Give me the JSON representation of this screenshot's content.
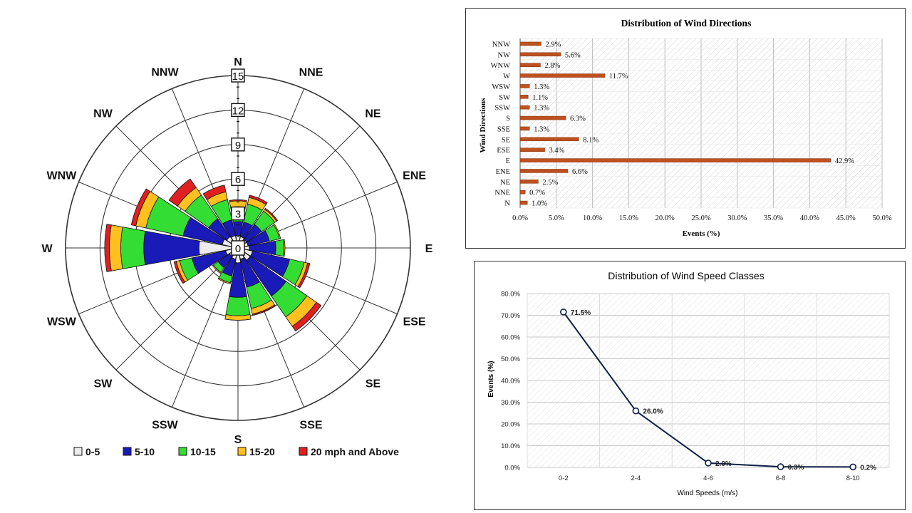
{
  "wind_rose": {
    "directions": [
      "N",
      "NNE",
      "NE",
      "ENE",
      "E",
      "ESE",
      "SE",
      "SSE",
      "S",
      "SSW",
      "SW",
      "WSW",
      "W",
      "WNW",
      "NW",
      "NNW"
    ],
    "rings": [
      "15",
      "12",
      "9",
      "6",
      "3",
      "0"
    ],
    "legend": [
      "0-5",
      "5-10",
      "10-15",
      "15-20",
      "20 mph and Above"
    ],
    "colors": [
      "#ececec",
      "#1a1ab8",
      "#33dd33",
      "#ffc020",
      "#e02020"
    ]
  },
  "chart_data": [
    {
      "type": "wind-rose",
      "directions": [
        "N",
        "NNE",
        "NE",
        "ENE",
        "E",
        "ESE",
        "SE",
        "SSE",
        "S",
        "SSW",
        "SW",
        "WSW",
        "W",
        "WNW",
        "NW",
        "NNW"
      ],
      "rlim": [
        0,
        15
      ],
      "ticks": [
        0,
        3,
        6,
        9,
        12,
        15
      ],
      "series": [
        {
          "name": "0-5",
          "values": [
            0.6,
            0.5,
            0.4,
            0.4,
            0.5,
            0.8,
            0.8,
            0.5,
            0.8,
            0.5,
            0.4,
            0.6,
            2.9,
            0.9,
            0.7,
            0.6
          ]
        },
        {
          "name": "5-10",
          "values": [
            1.2,
            1.3,
            1.6,
            1.9,
            2.3,
            3.3,
            3.8,
            2.5,
            3.0,
            1.5,
            1.2,
            3.0,
            4.8,
            3.5,
            1.9,
            1.4
          ]
        },
        {
          "name": "10-15",
          "values": [
            1.3,
            1.6,
            1.4,
            0.9,
            0.7,
            1.3,
            2.2,
            1.9,
            1.6,
            0.6,
            0.5,
            1.1,
            2.0,
            3.3,
            2.5,
            1.8
          ]
        },
        {
          "name": "15-20",
          "values": [
            0.5,
            0.6,
            0.2,
            0.1,
            0.1,
            0.3,
            1.0,
            0.5,
            0.4,
            0.1,
            0.1,
            0.3,
            1.0,
            0.9,
            0.8,
            0.7
          ]
        },
        {
          "name": "20 mph and Above",
          "values": [
            0.1,
            0.2,
            0.1,
            0.0,
            0.0,
            0.2,
            0.5,
            0.1,
            0.0,
            0.0,
            0.0,
            0.2,
            0.4,
            0.4,
            0.9,
            0.6
          ]
        }
      ]
    },
    {
      "type": "bar",
      "orientation": "horizontal",
      "title": "Distribution of Wind Directions",
      "xlabel": "Events (%)",
      "ylabel": "Wind Directions",
      "categories": [
        "NNW",
        "NW",
        "WNW",
        "W",
        "WSW",
        "SW",
        "SSW",
        "S",
        "SSE",
        "SE",
        "ESE",
        "E",
        "ENE",
        "NE",
        "NNE",
        "N"
      ],
      "values": [
        2.9,
        5.6,
        2.8,
        11.7,
        1.3,
        1.1,
        1.3,
        6.3,
        1.3,
        8.1,
        3.4,
        42.9,
        6.6,
        2.5,
        0.7,
        1.0
      ],
      "labels": [
        "2.9%",
        "5.6%",
        "2.8%",
        "11.7%",
        "1.3%",
        "1.1%",
        "1.3%",
        "6.3%",
        "1.3%",
        "8.1%",
        "3.4%",
        "42.9%",
        "6.6%",
        "2.5%",
        "0.7%",
        "1.0%"
      ],
      "xlim": [
        0,
        50
      ],
      "ticks": [
        "0.0%",
        "5.0%",
        "10.0%",
        "15.0%",
        "20.0%",
        "25.0%",
        "30.0%",
        "35.0%",
        "40.0%",
        "45.0%",
        "50.0%"
      ],
      "color": "#c0501e"
    },
    {
      "type": "line",
      "title": "Distribution of Wind Speed Classes",
      "xlabel": "Wind Speeds (m/s)",
      "ylabel": "Events (%)",
      "categories": [
        "0-2",
        "2-4",
        "4-6",
        "6-8",
        "8-10"
      ],
      "values": [
        71.5,
        26.0,
        2.0,
        0.3,
        0.2
      ],
      "labels": [
        "71.5%",
        "26.0%",
        "2.0%",
        "0.3%",
        "0.2%"
      ],
      "ylim": [
        0,
        80
      ],
      "ticks": [
        "0.0%",
        "10.0%",
        "20.0%",
        "30.0%",
        "40.0%",
        "50.0%",
        "60.0%",
        "70.0%",
        "80.0%"
      ],
      "color": "#0f1e46"
    }
  ]
}
